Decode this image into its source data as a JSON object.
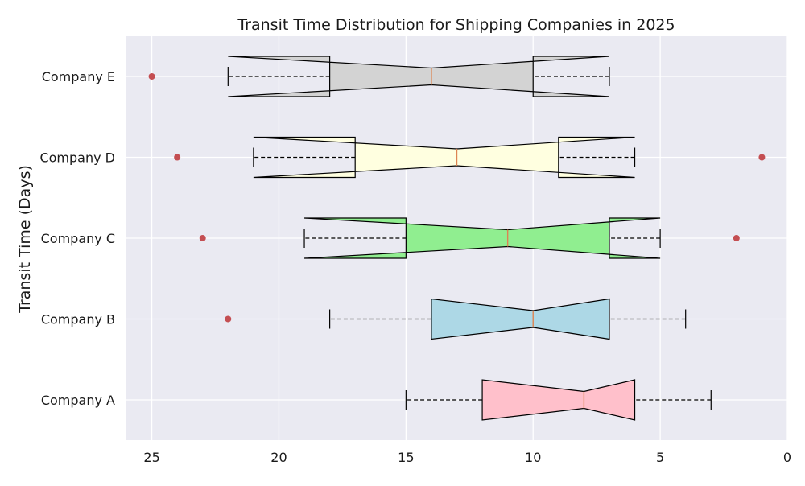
{
  "chart_data": {
    "type": "box",
    "orientation": "horizontal",
    "notched": true,
    "title": "Transit Time Distribution for Shipping Companies in 2025",
    "xlabel": "",
    "ylabel": "Transit Time (Days)",
    "x_axis_inverted": true,
    "xlim": [
      26,
      0
    ],
    "x_ticks": [
      25,
      20,
      15,
      10,
      5,
      0
    ],
    "grid": true,
    "categories": [
      "Company A",
      "Company B",
      "Company C",
      "Company D",
      "Company E"
    ],
    "boxes": [
      {
        "category": "Company A",
        "whisker_low": 3,
        "q1": 6,
        "median": 8,
        "q3": 12,
        "whisker_high": 15,
        "notch_low": 6.0,
        "notch_high": 12.0,
        "outliers": [],
        "color": "#ffc0cb"
      },
      {
        "category": "Company B",
        "whisker_low": 4,
        "q1": 7,
        "median": 10,
        "q3": 14,
        "whisker_high": 18,
        "notch_low": 7.0,
        "notch_high": 14.0,
        "outliers": [
          22
        ],
        "color": "#add8e6"
      },
      {
        "category": "Company C",
        "whisker_low": 5,
        "q1": 7,
        "median": 11,
        "q3": 15,
        "whisker_high": 19,
        "notch_low": 5.0,
        "notch_high": 19.0,
        "outliers": [
          2,
          23
        ],
        "color": "#90ee90"
      },
      {
        "category": "Company D",
        "whisker_low": 6,
        "q1": 9,
        "median": 13,
        "q3": 17,
        "whisker_high": 21,
        "notch_low": 6.0,
        "notch_high": 21.0,
        "outliers": [
          1,
          24
        ],
        "color": "#ffffe0"
      },
      {
        "category": "Company E",
        "whisker_low": 7,
        "q1": 10,
        "median": 14,
        "q3": 18,
        "whisker_high": 22,
        "notch_low": 7.0,
        "notch_high": 22.0,
        "outliers": [
          25
        ],
        "color": "#d3d3d3"
      }
    ],
    "colors": {
      "plot_background": "#eaeaf2",
      "grid": "#ffffff",
      "median_line": "#dd8452",
      "outlier": "#c44e52",
      "box_edge": "#000000"
    }
  }
}
